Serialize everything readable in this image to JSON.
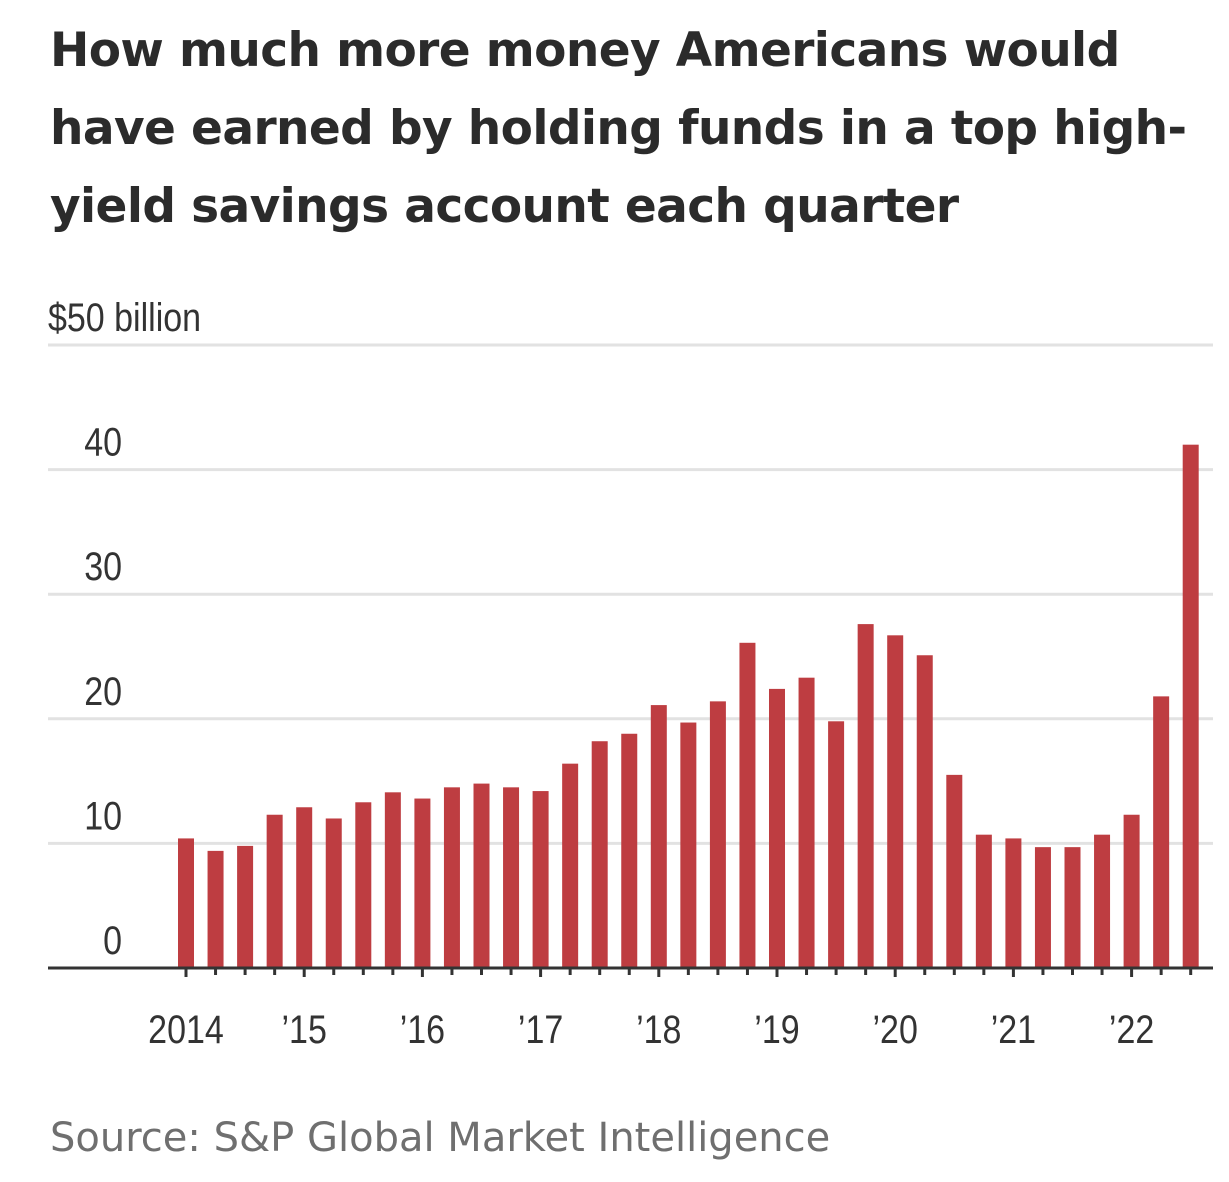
{
  "chart_data": {
    "type": "bar",
    "title": "How much more money Americans would have earned by holding funds in a top high-yield savings account each quarter",
    "ylabel": "",
    "xlabel": "",
    "ylim": [
      0,
      50
    ],
    "y_ticks": [
      {
        "value": 0,
        "label": "0"
      },
      {
        "value": 10,
        "label": "10"
      },
      {
        "value": 20,
        "label": "20"
      },
      {
        "value": 30,
        "label": "30"
      },
      {
        "value": 40,
        "label": "40"
      },
      {
        "value": 50,
        "label": "$50 billion"
      }
    ],
    "x_tick_labels": [
      {
        "quarter_index": 0,
        "label": "2014"
      },
      {
        "quarter_index": 4,
        "label": "’15"
      },
      {
        "quarter_index": 8,
        "label": "’16"
      },
      {
        "quarter_index": 12,
        "label": "’17"
      },
      {
        "quarter_index": 16,
        "label": "’18"
      },
      {
        "quarter_index": 20,
        "label": "’19"
      },
      {
        "quarter_index": 24,
        "label": "’20"
      },
      {
        "quarter_index": 28,
        "label": "’21"
      },
      {
        "quarter_index": 32,
        "label": "’22"
      }
    ],
    "categories": [
      "2014 Q1",
      "2014 Q2",
      "2014 Q3",
      "2014 Q4",
      "2015 Q1",
      "2015 Q2",
      "2015 Q3",
      "2015 Q4",
      "2016 Q1",
      "2016 Q2",
      "2016 Q3",
      "2016 Q4",
      "2017 Q1",
      "2017 Q2",
      "2017 Q3",
      "2017 Q4",
      "2018 Q1",
      "2018 Q2",
      "2018 Q3",
      "2018 Q4",
      "2019 Q1",
      "2019 Q2",
      "2019 Q3",
      "2019 Q4",
      "2020 Q1",
      "2020 Q2",
      "2020 Q3",
      "2020 Q4",
      "2021 Q1",
      "2021 Q2",
      "2021 Q3",
      "2021 Q4",
      "2022 Q1",
      "2022 Q2",
      "2022 Q3"
    ],
    "values": [
      10.4,
      9.4,
      9.8,
      12.3,
      12.9,
      12.0,
      13.3,
      14.1,
      13.6,
      14.5,
      14.8,
      14.5,
      14.2,
      16.4,
      18.2,
      18.8,
      21.1,
      19.7,
      21.4,
      26.1,
      22.4,
      23.3,
      19.8,
      27.6,
      26.7,
      25.1,
      15.5,
      10.7,
      10.4,
      9.7,
      9.7,
      10.7,
      12.3,
      21.8,
      42.0
    ],
    "bar_color": "#be3d41",
    "gridlines": true,
    "legend": "none"
  },
  "source": "Source: S&P Global Market Intelligence"
}
